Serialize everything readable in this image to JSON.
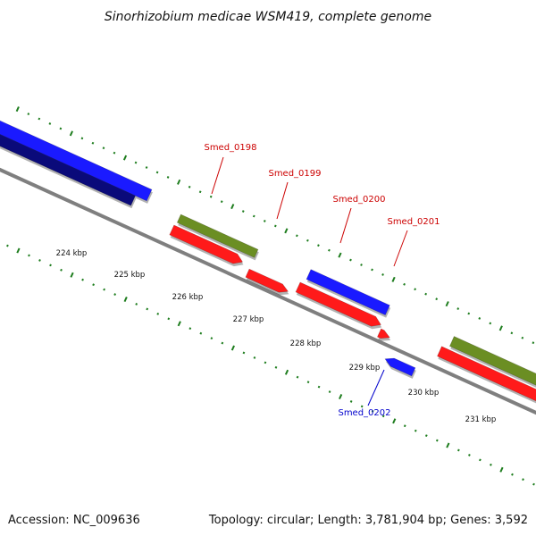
{
  "title": "Sinorhizobium medicae WSM419, complete genome",
  "footer": {
    "accession": "Accession: NC_009636",
    "summary": "Topology: circular; Length: 3,781,904 bp; Genes: 3,592"
  },
  "colors": {
    "backbone": "#7f7f7f",
    "tick": "#1e7d1e",
    "forward_cds": "#ff1a1a",
    "reverse_cds": "#1a1aff",
    "gene": "#6b8e23",
    "dark_reverse": "#0a0a7a",
    "label_forward": "#cc0000",
    "label_reverse": "#0000cc"
  },
  "scale": {
    "unit": "kbp",
    "tick_labels": [
      "224 kbp",
      "225 kbp",
      "226 kbp",
      "227 kbp",
      "228 kbp",
      "229 kbp",
      "230 kbp",
      "231 kbp"
    ]
  },
  "gene_labels": [
    {
      "name": "Smed_0198",
      "strand": "forward"
    },
    {
      "name": "Smed_0199",
      "strand": "forward"
    },
    {
      "name": "Smed_0200",
      "strand": "forward"
    },
    {
      "name": "Smed_0201",
      "strand": "forward"
    },
    {
      "name": "Smed_0202",
      "strand": "reverse"
    }
  ]
}
